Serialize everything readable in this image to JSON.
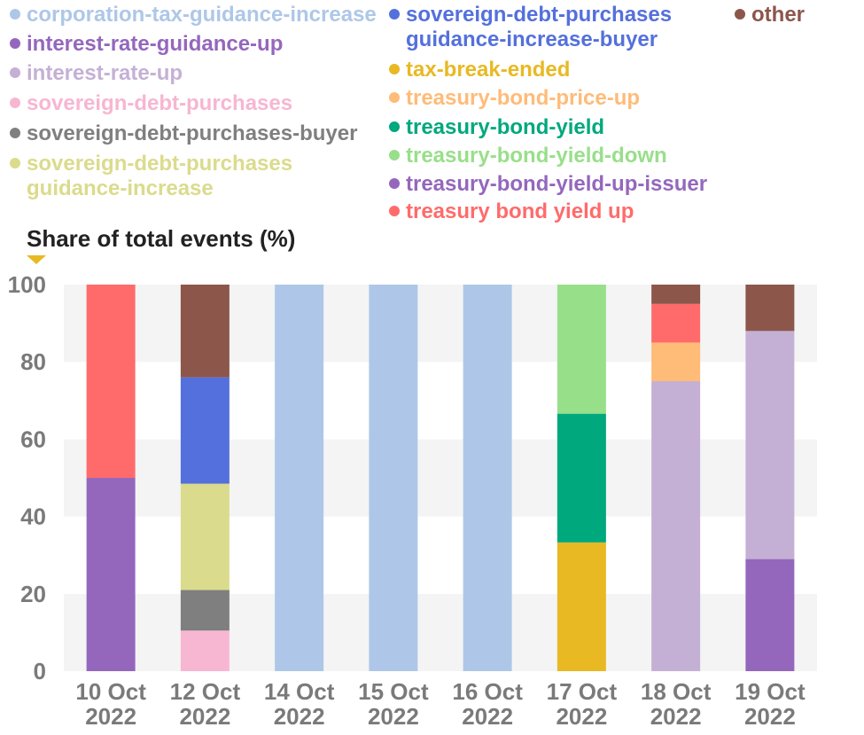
{
  "chart_data": {
    "type": "bar",
    "stacked": true,
    "ylabel": "Share of total events (%)",
    "ylim": [
      0,
      100
    ],
    "yticks": [
      0,
      20,
      40,
      60,
      80,
      100
    ],
    "grid": "horizontal bands",
    "legend_placement": "top",
    "categories": [
      [
        "10 Oct",
        "2022"
      ],
      [
        "12 Oct",
        "2022"
      ],
      [
        "14 Oct",
        "2022"
      ],
      [
        "15 Oct",
        "2022"
      ],
      [
        "16 Oct",
        "2022"
      ],
      [
        "17 Oct",
        "2022"
      ],
      [
        "18 Oct",
        "2022"
      ],
      [
        "19 Oct",
        "2022"
      ]
    ],
    "series": [
      {
        "name": "treasury bond yield up",
        "color": "#ff6b6b",
        "values": [
          50,
          0,
          0,
          0,
          0,
          0,
          10,
          0
        ]
      },
      {
        "name": "interest-rate-guidance-up",
        "color": "#9467bd",
        "values": [
          50,
          0,
          0,
          0,
          0,
          0,
          0,
          0
        ]
      },
      {
        "name": "sovereign-debt-purchases",
        "color": "#f7b6d2",
        "values": [
          0,
          10.5,
          0,
          0,
          0,
          0,
          0,
          0
        ]
      },
      {
        "name": "sovereign-debt-purchases-buyer",
        "color": "#7f7f7f",
        "values": [
          0,
          10.5,
          0,
          0,
          0,
          0,
          0,
          0
        ]
      },
      {
        "name": "sovereign-debt-purchases guidance-increase",
        "color": "#dbdb8d",
        "values": [
          0,
          27.5,
          0,
          0,
          0,
          0,
          0,
          0
        ]
      },
      {
        "name": "sovereign-debt-purchases guidance-increase-buyer",
        "color": "#5470dc",
        "values": [
          0,
          27.5,
          0,
          0,
          0,
          0,
          0,
          0
        ]
      },
      {
        "name": "corporation-tax-guidance-increase",
        "color": "#aec7e8",
        "values": [
          0,
          0,
          100,
          100,
          100,
          0,
          0,
          0
        ]
      },
      {
        "name": "tax-break-ended",
        "color": "#e8b923",
        "values": [
          0,
          0,
          0,
          0,
          0,
          33.3,
          0,
          0
        ]
      },
      {
        "name": "treasury-bond-yield",
        "color": "#00a87e",
        "values": [
          0,
          0,
          0,
          0,
          0,
          33.3,
          0,
          0
        ]
      },
      {
        "name": "treasury-bond-yield-down",
        "color": "#98df8a",
        "values": [
          0,
          0,
          0,
          0,
          0,
          33.4,
          0,
          0
        ]
      },
      {
        "name": "interest-rate-up",
        "color": "#c5b0d5",
        "values": [
          0,
          0,
          0,
          0,
          0,
          0,
          75,
          59
        ]
      },
      {
        "name": "treasury-bond-price-up",
        "color": "#ffbb78",
        "values": [
          0,
          0,
          0,
          0,
          0,
          0,
          10,
          0
        ]
      },
      {
        "name": "treasury-bond-yield-up-issuer",
        "color": "#9467bd",
        "values": [
          0,
          0,
          0,
          0,
          0,
          0,
          0,
          29
        ]
      },
      {
        "name": "other",
        "color": "#8c564b",
        "values": [
          0,
          24,
          0,
          0,
          0,
          0,
          5,
          12
        ]
      }
    ],
    "stack_order": [
      [
        1,
        0
      ],
      [
        2,
        3,
        4,
        5,
        13
      ],
      [
        6
      ],
      [
        6
      ],
      [
        6
      ],
      [
        7,
        8,
        9
      ],
      [
        10,
        11,
        0,
        13
      ],
      [
        12,
        10,
        13
      ]
    ],
    "legend": [
      {
        "series": 6,
        "lines": [
          "corporation-tax-guidance-increase"
        ],
        "color": "#aec7e8"
      },
      {
        "series": 1,
        "lines": [
          "interest-rate-guidance-up"
        ],
        "color": "#9467bd"
      },
      {
        "series": 10,
        "lines": [
          "interest-rate-up"
        ],
        "color": "#c5b0d5"
      },
      {
        "series": 2,
        "lines": [
          "sovereign-debt-purchases"
        ],
        "color": "#f7b6d2"
      },
      {
        "series": 3,
        "lines": [
          "sovereign-debt-purchases-buyer"
        ],
        "color": "#7f7f7f"
      },
      {
        "series": 4,
        "lines": [
          "sovereign-debt-purchases",
          "guidance-increase"
        ],
        "color": "#dbdb8d"
      },
      {
        "series": 5,
        "lines": [
          "sovereign-debt-purchases",
          "guidance-increase-buyer"
        ],
        "color": "#5470dc"
      },
      {
        "series": 7,
        "lines": [
          "tax-break-ended"
        ],
        "color": "#e8b923"
      },
      {
        "series": 11,
        "lines": [
          "treasury-bond-price-up"
        ],
        "color": "#ffbb78"
      },
      {
        "series": 8,
        "lines": [
          "treasury-bond-yield"
        ],
        "color": "#00a87e"
      },
      {
        "series": 9,
        "lines": [
          "treasury-bond-yield-down"
        ],
        "color": "#98df8a"
      },
      {
        "series": 12,
        "lines": [
          "treasury-bond-yield-up-issuer"
        ],
        "color": "#9467bd"
      },
      {
        "series": 0,
        "lines": [
          "treasury bond yield up"
        ],
        "color": "#ff6b6b"
      },
      {
        "series": 13,
        "lines": [
          "other"
        ],
        "color": "#8c564b"
      }
    ],
    "ylabel_marker_color": "#e8b923"
  }
}
